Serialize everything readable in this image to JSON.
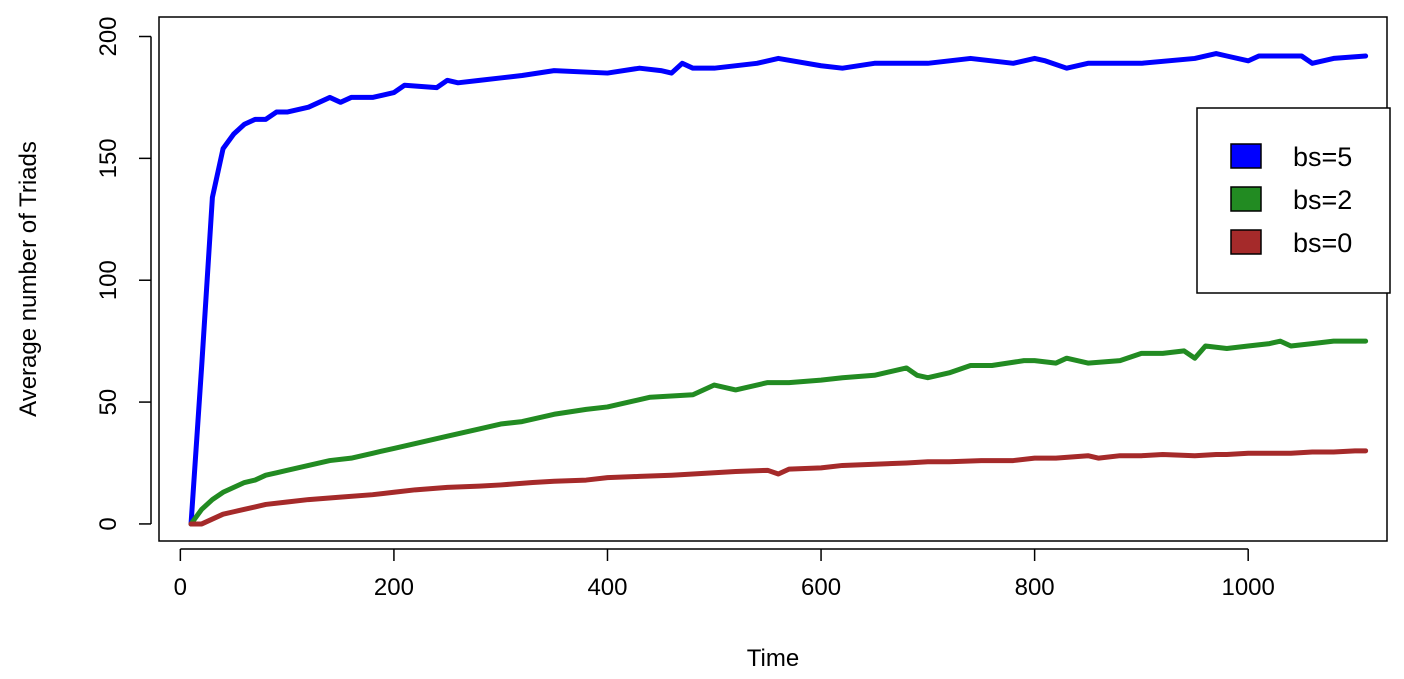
{
  "chart_data": {
    "type": "line",
    "title": "",
    "xlabel": "Time",
    "ylabel": "Average number of Triads",
    "xlim": [
      -20,
      1130
    ],
    "ylim": [
      -7,
      208
    ],
    "xticks": [
      0,
      200,
      400,
      600,
      800,
      1000
    ],
    "yticks": [
      0,
      50,
      100,
      150,
      200
    ],
    "xtick_labels": [
      "0",
      "200",
      "400",
      "600",
      "800",
      "1000"
    ],
    "ytick_labels": [
      "0",
      "50",
      "100",
      "150",
      "200"
    ],
    "grid": false,
    "legend_position": "top-right",
    "series": [
      {
        "name": "bs=5",
        "color": "#0000ff",
        "x": [
          10,
          20,
          30,
          40,
          50,
          60,
          70,
          80,
          90,
          100,
          120,
          140,
          150,
          160,
          180,
          200,
          210,
          240,
          250,
          260,
          280,
          300,
          320,
          350,
          400,
          430,
          450,
          460,
          470,
          480,
          500,
          540,
          560,
          600,
          620,
          650,
          700,
          740,
          780,
          800,
          810,
          830,
          850,
          900,
          950,
          970,
          980,
          1000,
          1010,
          1050,
          1060,
          1080,
          1110
        ],
        "y": [
          0,
          65,
          134,
          154,
          160,
          164,
          166,
          166,
          169,
          169,
          171,
          175,
          173,
          175,
          175,
          177,
          180,
          179,
          182,
          181,
          182,
          183,
          184,
          186,
          185,
          187,
          186,
          185,
          189,
          187,
          187,
          189,
          191,
          188,
          187,
          189,
          189,
          191,
          189,
          191,
          190,
          187,
          189,
          189,
          191,
          193,
          192,
          190,
          192,
          192,
          189,
          191,
          192
        ]
      },
      {
        "name": "bs=2",
        "color": "#228b22",
        "x": [
          10,
          20,
          30,
          40,
          50,
          60,
          70,
          80,
          90,
          100,
          120,
          140,
          160,
          180,
          200,
          220,
          250,
          280,
          300,
          320,
          350,
          380,
          400,
          420,
          440,
          480,
          500,
          520,
          550,
          570,
          600,
          620,
          650,
          680,
          690,
          700,
          720,
          740,
          760,
          790,
          800,
          820,
          830,
          850,
          880,
          900,
          920,
          940,
          950,
          960,
          980,
          1000,
          1020,
          1030,
          1040,
          1060,
          1080,
          1110
        ],
        "y": [
          0,
          6,
          10,
          13,
          15,
          17,
          18,
          20,
          21,
          22,
          24,
          26,
          27,
          29,
          31,
          33,
          36,
          39,
          41,
          42,
          45,
          47,
          48,
          50,
          52,
          53,
          57,
          55,
          58,
          58,
          59,
          60,
          61,
          64,
          61,
          60,
          62,
          65,
          65,
          67,
          67,
          66,
          68,
          66,
          67,
          70,
          70,
          71,
          68,
          73,
          72,
          73,
          74,
          75,
          73,
          74,
          75,
          75
        ]
      },
      {
        "name": "bs=0",
        "color": "#a52a2a",
        "x": [
          10,
          20,
          30,
          40,
          50,
          60,
          70,
          80,
          100,
          120,
          150,
          180,
          200,
          220,
          250,
          280,
          300,
          330,
          350,
          380,
          400,
          430,
          460,
          500,
          520,
          550,
          560,
          570,
          600,
          620,
          650,
          680,
          700,
          720,
          750,
          780,
          800,
          820,
          850,
          860,
          880,
          900,
          920,
          950,
          970,
          980,
          1000,
          1030,
          1040,
          1060,
          1080,
          1100,
          1110
        ],
        "y": [
          0,
          0,
          2,
          4,
          5,
          6,
          7,
          8,
          9,
          10,
          11,
          12,
          13,
          14,
          15,
          15.5,
          16,
          17,
          17.5,
          18,
          19,
          19.5,
          20,
          21,
          21.5,
          22,
          20.5,
          22.5,
          23,
          24,
          24.5,
          25,
          25.5,
          25.5,
          26,
          26,
          27,
          27,
          28,
          27,
          28,
          28,
          28.5,
          28,
          28.5,
          28.5,
          29,
          29,
          29,
          29.5,
          29.5,
          30,
          30
        ]
      }
    ]
  }
}
